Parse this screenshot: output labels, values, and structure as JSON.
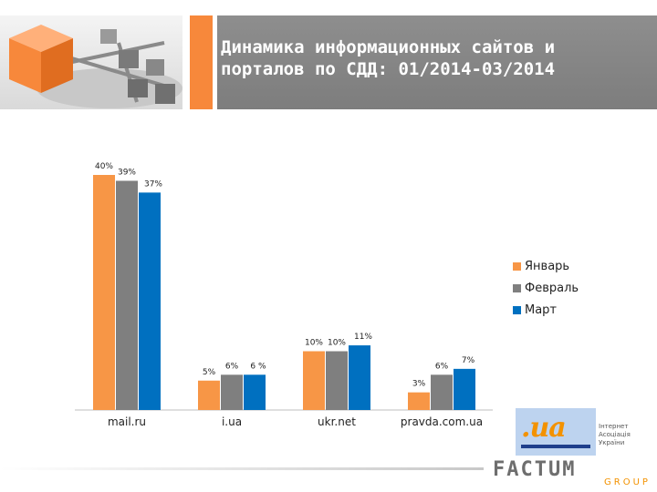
{
  "header": {
    "title": "Динамика информационных сайтов и\nпорталов по СДД: 01/2014-03/2014"
  },
  "colors": {
    "accent": "#f7883b",
    "series": [
      "#f79646",
      "#7f7f7f",
      "#0070c0"
    ]
  },
  "chart_data": {
    "type": "bar",
    "categories": [
      "mail.ru",
      "i.ua",
      "ukr.net",
      "pravda.com.ua"
    ],
    "series": [
      {
        "name": "Январь",
        "values": [
          40,
          5,
          10,
          3
        ],
        "labels": [
          "40%",
          "5%",
          "10%",
          "3%"
        ]
      },
      {
        "name": "Февраль",
        "values": [
          39,
          6,
          10,
          6
        ],
        "labels": [
          "39%",
          "6%",
          "10%",
          "6%"
        ]
      },
      {
        "name": "Март",
        "values": [
          37,
          6,
          11,
          7
        ],
        "labels": [
          "37%",
          "6 %",
          "11%",
          "7%"
        ]
      }
    ],
    "ylim": [
      0,
      40
    ],
    "grid": false,
    "legend_position": "right"
  },
  "footer": {
    "logo_text": ".ua",
    "logo_caption": "Інтернет\nАсоціація\nУкраїни",
    "brand": "FACTUM",
    "brand_sub": "GROUP"
  }
}
